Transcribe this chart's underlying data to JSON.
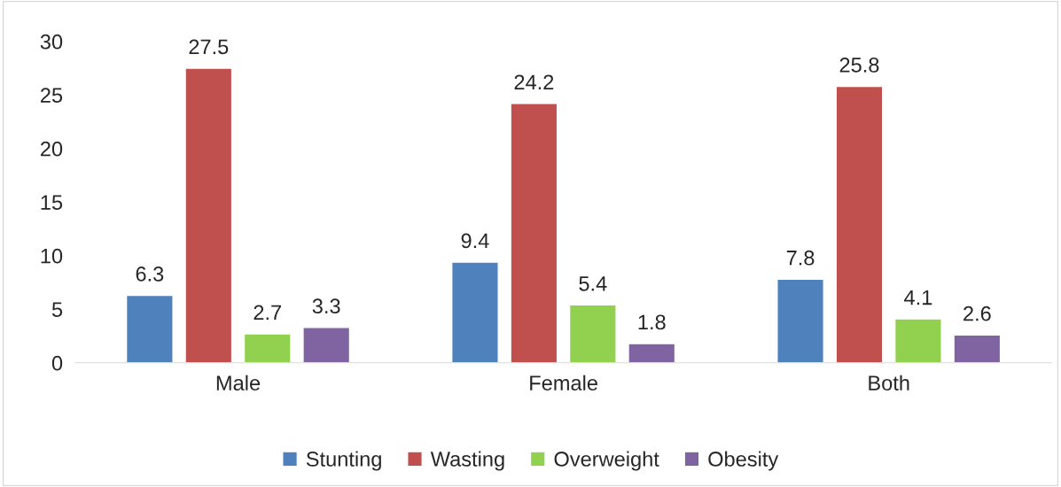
{
  "chart_data": {
    "type": "bar",
    "categories": [
      "Male",
      "Female",
      "Both"
    ],
    "series": [
      {
        "name": "Stunting",
        "color": "#4f81bd",
        "values": [
          6.3,
          9.4,
          7.8
        ]
      },
      {
        "name": "Wasting",
        "color": "#c0504d",
        "values": [
          27.5,
          24.2,
          25.8
        ]
      },
      {
        "name": "Overweight",
        "color": "#92d050",
        "values": [
          2.7,
          5.4,
          4.1
        ]
      },
      {
        "name": "Obesity",
        "color": "#8064a2",
        "values": [
          3.3,
          1.8,
          2.6
        ]
      }
    ],
    "ylim": [
      0,
      30
    ],
    "yticks": [
      0,
      5,
      10,
      15,
      20,
      25,
      30
    ],
    "data_labels": true,
    "grid": false,
    "legend": "bottom"
  }
}
